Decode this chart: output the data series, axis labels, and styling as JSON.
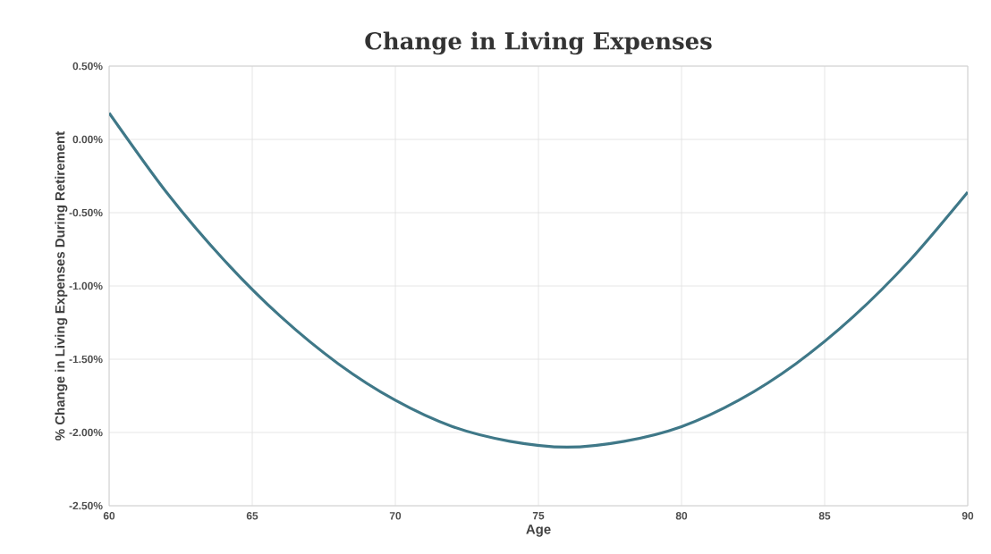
{
  "chart_data": {
    "type": "line",
    "title": "Change in Living Expenses",
    "xlabel": "Age",
    "ylabel": "% Change in Living Expenses During Retirement",
    "x": [
      60,
      62,
      64,
      66,
      68,
      70,
      72,
      74,
      76,
      78,
      80,
      82,
      84,
      86,
      88,
      90
    ],
    "series": [
      {
        "color": "#3f7888",
        "values": [
          0.18,
          -0.36,
          -0.82,
          -1.21,
          -1.53,
          -1.78,
          -1.96,
          -2.06,
          -2.1,
          -2.06,
          -1.96,
          -1.78,
          -1.53,
          -1.21,
          -0.82,
          -0.36
        ]
      }
    ],
    "xlim": [
      60,
      90
    ],
    "xticks": [
      60,
      65,
      70,
      75,
      80,
      85,
      90
    ],
    "ylim": [
      -2.5,
      0.5
    ],
    "yticks": [
      {
        "value": 0.5,
        "label": "0.50%"
      },
      {
        "value": 0,
        "label": "0.00%"
      },
      {
        "value": -0.5,
        "label": "-0.50%"
      },
      {
        "value": -1,
        "label": "-1.00%"
      },
      {
        "value": -1.5,
        "label": "-1.50%"
      },
      {
        "value": -2,
        "label": "-2.00%"
      },
      {
        "value": -2.5,
        "label": "-2.50%"
      }
    ],
    "grid": true,
    "marker": "none",
    "line_style": "solid"
  }
}
